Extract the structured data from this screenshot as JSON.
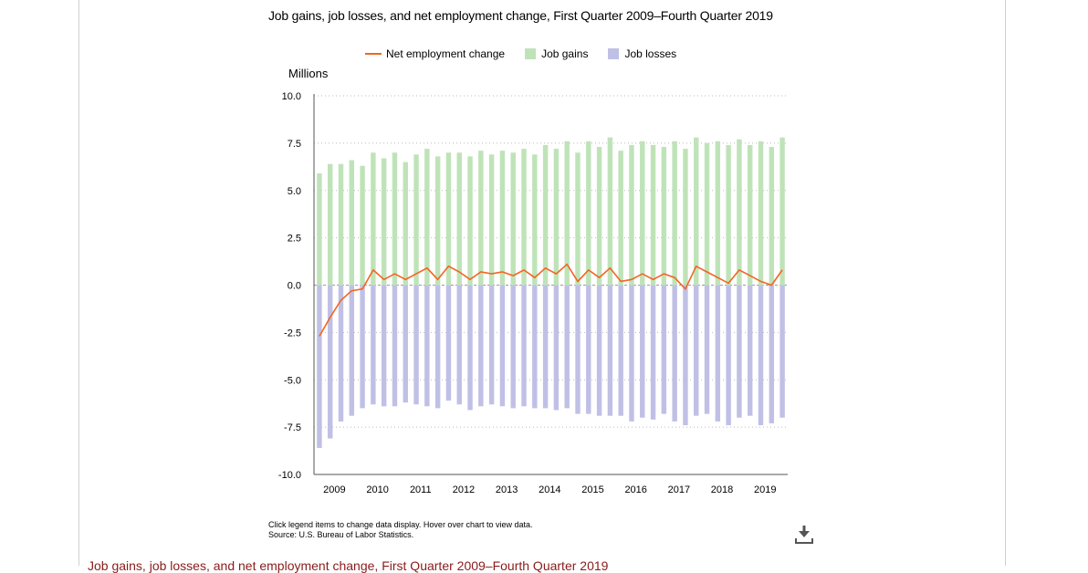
{
  "page": {
    "note_line1": "Click legend items to change data display. Hover over chart to view data.",
    "note_line2": "Source: U.S. Bureau of Labor Statistics.",
    "bottom_heading": "Job gains, job losses, and net employment change, First Quarter 2009–Fourth Quarter 2019",
    "download_icon": "download-icon"
  },
  "colors": {
    "net": "#f26522",
    "gains": "#bfe3b8",
    "losses": "#c0c0e6",
    "heading": "#8b1a1a"
  },
  "chart_data": {
    "type": "bar",
    "title": "Job gains, job losses, and net employment change, First Quarter 2009–Fourth Quarter 2019",
    "ylabel": "Millions",
    "xlabel": "",
    "ylim": [
      -10.0,
      10.0
    ],
    "yticks": [
      "10.0",
      "7.5",
      "5.0",
      "2.5",
      "0.0",
      "-2.5",
      "-5.0",
      "-7.5",
      "-10.0"
    ],
    "ytick_values": [
      10.0,
      7.5,
      5.0,
      2.5,
      0.0,
      -2.5,
      -5.0,
      -7.5,
      -10.0
    ],
    "xtick_labels": [
      "2009",
      "2010",
      "2011",
      "2012",
      "2013",
      "2014",
      "2015",
      "2016",
      "2017",
      "2018",
      "2019"
    ],
    "legend": [
      "Net employment change",
      "Job gains",
      "Job losses"
    ],
    "grid": "horizontal dotted",
    "series": [
      {
        "name": "Job gains",
        "kind": "bar",
        "values": [
          5.9,
          6.4,
          6.4,
          6.6,
          6.3,
          7.0,
          6.7,
          7.0,
          6.5,
          6.9,
          7.2,
          6.8,
          7.0,
          7.0,
          6.8,
          7.1,
          6.9,
          7.1,
          7.0,
          7.2,
          6.9,
          7.4,
          7.2,
          7.6,
          7.0,
          7.6,
          7.3,
          7.8,
          7.1,
          7.4,
          7.6,
          7.4,
          7.3,
          7.6,
          7.2,
          7.8,
          7.5,
          7.6,
          7.4,
          7.7,
          7.4,
          7.6,
          7.3,
          7.8
        ]
      },
      {
        "name": "Job losses",
        "kind": "bar",
        "values": [
          -8.6,
          -8.1,
          -7.2,
          -6.9,
          -6.5,
          -6.3,
          -6.4,
          -6.4,
          -6.2,
          -6.3,
          -6.4,
          -6.5,
          -6.1,
          -6.3,
          -6.6,
          -6.4,
          -6.3,
          -6.4,
          -6.5,
          -6.4,
          -6.5,
          -6.5,
          -6.6,
          -6.5,
          -6.8,
          -6.8,
          -6.9,
          -6.9,
          -6.9,
          -7.2,
          -7.0,
          -7.1,
          -6.8,
          -7.2,
          -7.4,
          -6.9,
          -6.8,
          -7.2,
          -7.4,
          -7.0,
          -6.9,
          -7.4,
          -7.3,
          -7.0
        ]
      },
      {
        "name": "Net employment change",
        "kind": "line",
        "values": [
          -2.7,
          -1.7,
          -0.8,
          -0.3,
          -0.2,
          0.8,
          0.3,
          0.6,
          0.3,
          0.6,
          0.9,
          0.3,
          1.0,
          0.7,
          0.3,
          0.7,
          0.6,
          0.7,
          0.5,
          0.8,
          0.4,
          0.9,
          0.6,
          1.1,
          0.2,
          0.8,
          0.4,
          0.9,
          0.2,
          0.3,
          0.6,
          0.3,
          0.6,
          0.4,
          -0.2,
          1.0,
          0.7,
          0.4,
          0.1,
          0.8,
          0.5,
          0.2,
          0.0,
          0.8
        ]
      }
    ]
  }
}
